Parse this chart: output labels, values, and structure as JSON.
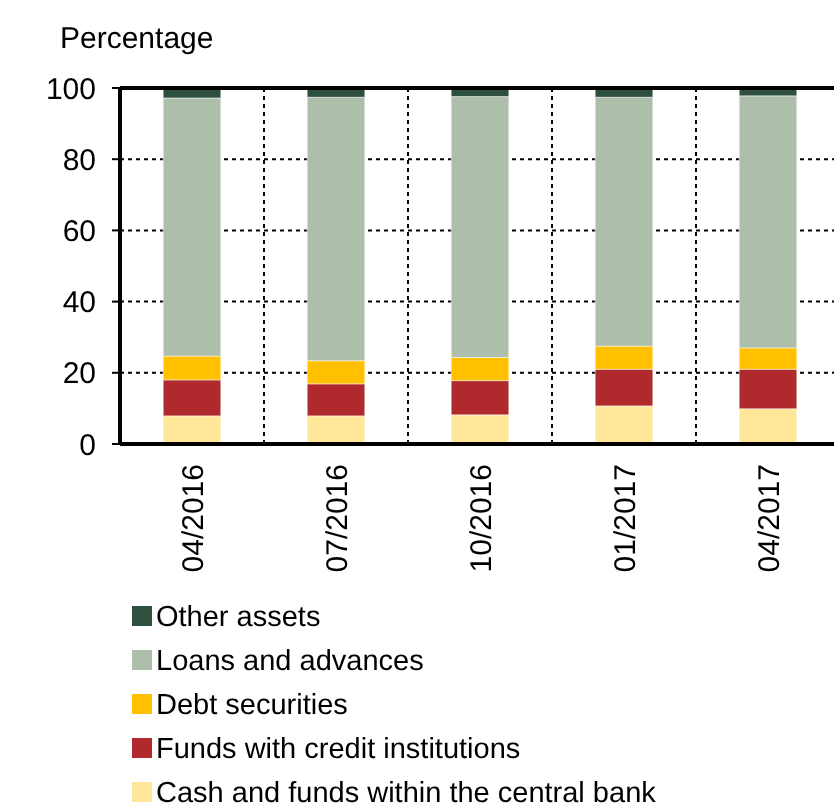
{
  "chart_data": {
    "type": "bar",
    "stacked": true,
    "ylabel": "Percentage",
    "categories": [
      "04/2016",
      "07/2016",
      "10/2016",
      "01/2017",
      "04/2017"
    ],
    "series": [
      {
        "name": "Cash and funds within the central bank",
        "color": "#ffe699",
        "values": [
          7.9,
          7.9,
          8.2,
          10.7,
          9.9
        ]
      },
      {
        "name": "Funds with credit institutions",
        "color": "#b0292c",
        "values": [
          10.1,
          9.0,
          9.6,
          10.3,
          11.1
        ]
      },
      {
        "name": "Debt securities",
        "color": "#ffc000",
        "values": [
          6.7,
          6.5,
          6.5,
          6.5,
          6.0
        ]
      },
      {
        "name": "Loans and advances",
        "color": "#adbfab",
        "values": [
          72.5,
          74.0,
          73.3,
          69.9,
          70.8
        ]
      },
      {
        "name": "Other assets",
        "color": "#2f4f3f",
        "values": [
          2.8,
          2.6,
          2.4,
          2.6,
          2.2
        ]
      }
    ],
    "ylim": [
      0,
      100
    ],
    "yticks": [
      0,
      20,
      40,
      60,
      80,
      100
    ],
    "grid": true,
    "legend": "bottom"
  }
}
